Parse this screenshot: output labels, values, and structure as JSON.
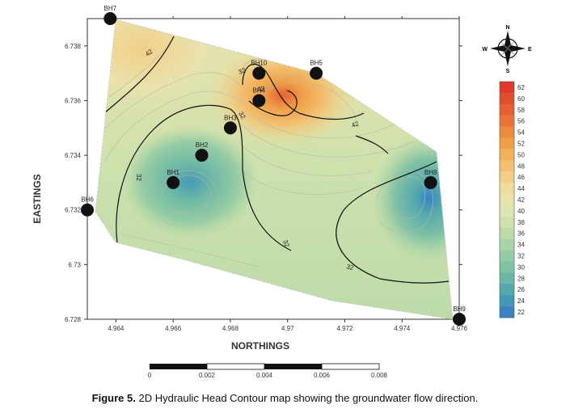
{
  "figure": {
    "caption_label": "Figure 5.",
    "caption_text": " 2D Hydraulic Head Contour map showing the groundwater flow direction."
  },
  "axes": {
    "xlabel": "NORTHINGS",
    "ylabel": "EASTINGS",
    "x_ticks": [
      "4.964",
      "4.966",
      "4.968",
      "4.97",
      "4.972",
      "4.974",
      "4.976"
    ],
    "y_ticks": [
      "6.738",
      "6.736",
      "6.734",
      "6.732",
      "6.73",
      "6.728"
    ],
    "xlim": [
      4.963,
      4.976
    ],
    "ylim": [
      6.728,
      6.739
    ]
  },
  "scale_bar": {
    "labels": [
      "0",
      "0.002",
      "0.004",
      "0.006",
      "0.008"
    ]
  },
  "compass": {
    "n": "N",
    "s": "S",
    "e": "E",
    "w": "W"
  },
  "legend": {
    "values": [
      "62",
      "60",
      "58",
      "56",
      "54",
      "52",
      "50",
      "48",
      "46",
      "44",
      "42",
      "40",
      "38",
      "36",
      "34",
      "32",
      "30",
      "28",
      "26",
      "24",
      "22"
    ],
    "colors": [
      "#e0392a",
      "#e24d2e",
      "#e46133",
      "#e87538",
      "#ec8a3e",
      "#f09e48",
      "#f2b15a",
      "#f2c070",
      "#f2cf88",
      "#f0dc9c",
      "#e9e2ac",
      "#dde5b2",
      "#cde1ad",
      "#bcdba9",
      "#a9d4a6",
      "#96cca4",
      "#80c2a4",
      "#6ab7a6",
      "#55a9ae",
      "#4598b8",
      "#3983c2"
    ]
  },
  "boreholes": [
    {
      "name": "BH7",
      "x": 4.9638,
      "y": 6.739
    },
    {
      "name": "BH10",
      "x": 4.969,
      "y": 6.737
    },
    {
      "name": "BH5",
      "x": 4.971,
      "y": 6.737
    },
    {
      "name": "BH4",
      "x": 4.969,
      "y": 6.736
    },
    {
      "name": "BH3",
      "x": 4.968,
      "y": 6.735
    },
    {
      "name": "BH2",
      "x": 4.967,
      "y": 6.734
    },
    {
      "name": "BH1",
      "x": 4.966,
      "y": 6.733
    },
    {
      "name": "BH6",
      "x": 4.963,
      "y": 6.732
    },
    {
      "name": "BH8",
      "x": 4.975,
      "y": 6.733
    },
    {
      "name": "BH9",
      "x": 4.976,
      "y": 6.728
    }
  ],
  "contour_labels": [
    "42",
    "32",
    "32",
    "42",
    "42",
    "32",
    "32",
    "32"
  ]
}
